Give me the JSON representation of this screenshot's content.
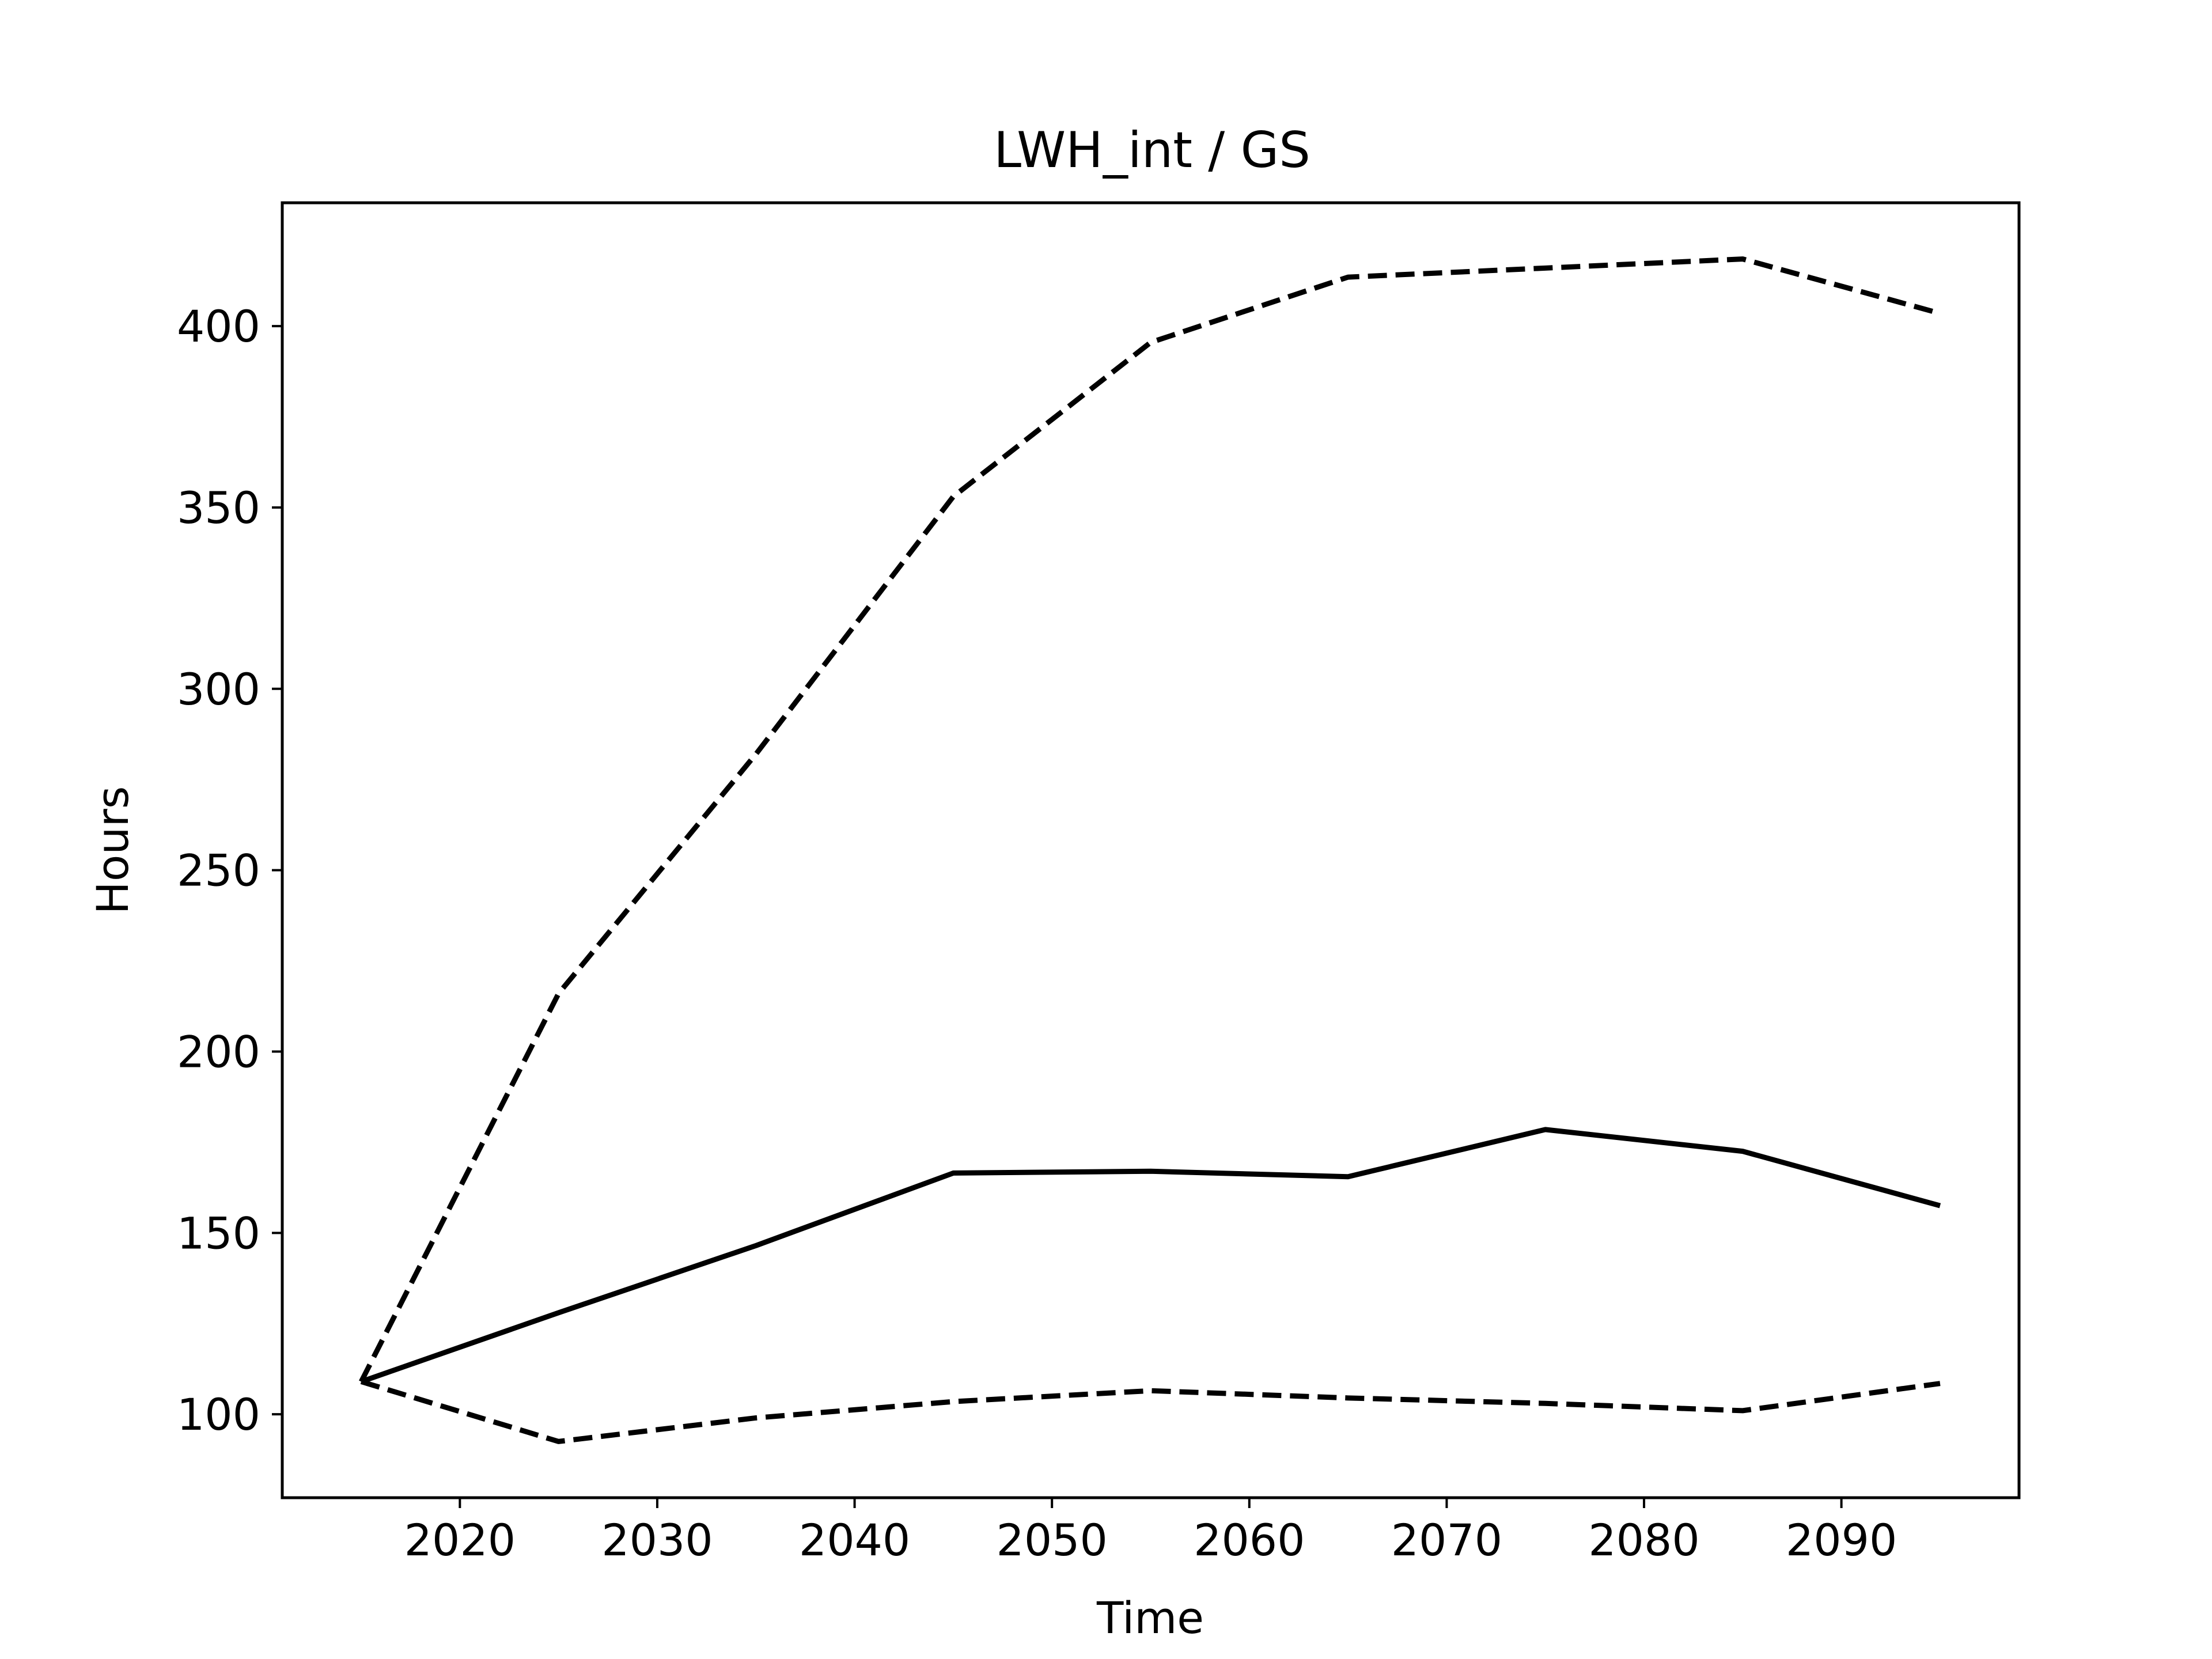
{
  "chart_data": {
    "type": "line",
    "title": "LWH_int / GS",
    "xlabel": "Time",
    "ylabel": "Hours",
    "xlim": [
      2011,
      2099
    ],
    "ylim": [
      77,
      434
    ],
    "xticks": [
      2020,
      2030,
      2040,
      2050,
      2060,
      2070,
      2080,
      2090
    ],
    "yticks": [
      100,
      150,
      200,
      250,
      300,
      350,
      400
    ],
    "grid": false,
    "legend": "none",
    "x": [
      2015,
      2025,
      2035,
      2045,
      2055,
      2065,
      2075,
      2085,
      2095
    ],
    "series": [
      {
        "style": "solid",
        "color": "#000000",
        "values": [
          109,
          128,
          146.5,
          166.5,
          167,
          165.5,
          178.5,
          172.5,
          157.5
        ]
      },
      {
        "style": "dashed",
        "color": "#000000",
        "values": [
          109,
          216,
          282,
          353,
          395.5,
          413.5,
          416,
          418.5,
          403.5
        ]
      },
      {
        "style": "dashed",
        "color": "#000000",
        "values": [
          109,
          92.5,
          99,
          103.5,
          106.5,
          104.5,
          103,
          101,
          108.5
        ]
      }
    ]
  }
}
